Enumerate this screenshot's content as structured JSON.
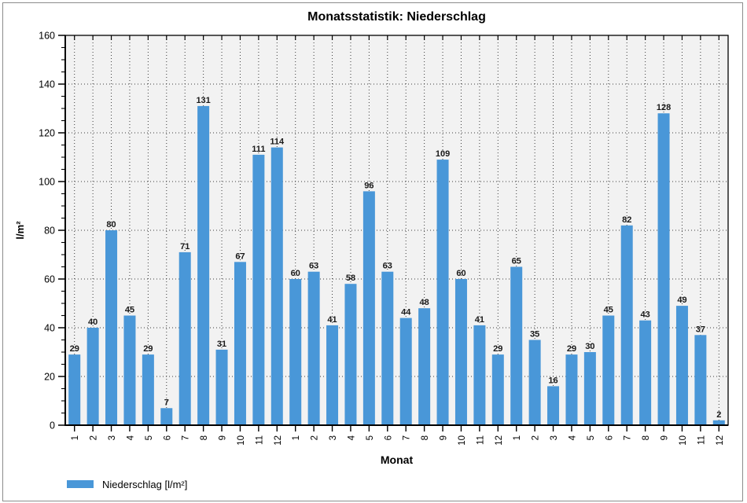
{
  "chart_data": {
    "type": "bar",
    "title": "Monatsstatistik: Niederschlag",
    "xlabel": "Monat",
    "ylabel": "l/m²",
    "ylim": [
      0,
      160
    ],
    "y_ticks": [
      0,
      20,
      40,
      60,
      80,
      100,
      120,
      140,
      160
    ],
    "y_minor_step": 5,
    "grid": true,
    "legend": {
      "label": "Niederschlag [l/m²]"
    },
    "categories": [
      "1",
      "2",
      "3",
      "4",
      "5",
      "6",
      "7",
      "8",
      "9",
      "10",
      "11",
      "12",
      "1",
      "2",
      "3",
      "4",
      "5",
      "6",
      "7",
      "8",
      "9",
      "10",
      "11",
      "12",
      "1",
      "2",
      "3",
      "4",
      "5",
      "6",
      "7",
      "8",
      "9",
      "10",
      "11",
      "12"
    ],
    "values": [
      29,
      40,
      80,
      45,
      29,
      7,
      71,
      131,
      31,
      67,
      111,
      114,
      60,
      63,
      41,
      58,
      96,
      63,
      44,
      48,
      109,
      60,
      41,
      29,
      65,
      35,
      16,
      29,
      30,
      45,
      82,
      43,
      128,
      49,
      37,
      2
    ],
    "colors": {
      "bar": "#4997d8",
      "plot_bg": "#f2f2f2",
      "grid_dots": "#3c3c3c",
      "axis": "#000000",
      "panel_border": "#8c8c8c"
    }
  }
}
